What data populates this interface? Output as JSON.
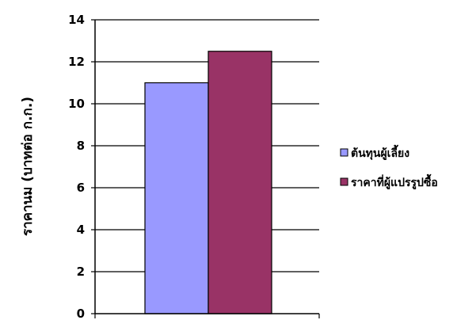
{
  "chart_data": {
    "type": "bar",
    "ylabel": "ราคานม (บาทต่อ ก.ก.)",
    "xlabel": "",
    "ylim": [
      0,
      14
    ],
    "y_ticks": [
      0,
      2,
      4,
      6,
      8,
      10,
      12,
      14
    ],
    "grid": true,
    "legend_position": "right",
    "categories": [
      ""
    ],
    "series": [
      {
        "name": "ต้นทุนผู้เลี้ยง",
        "values": [
          11
        ],
        "color": "#9999ff"
      },
      {
        "name": "ราคาที่ผู้แปรรูปซื้อ",
        "values": [
          12.5
        ],
        "color": "#993366"
      }
    ]
  }
}
